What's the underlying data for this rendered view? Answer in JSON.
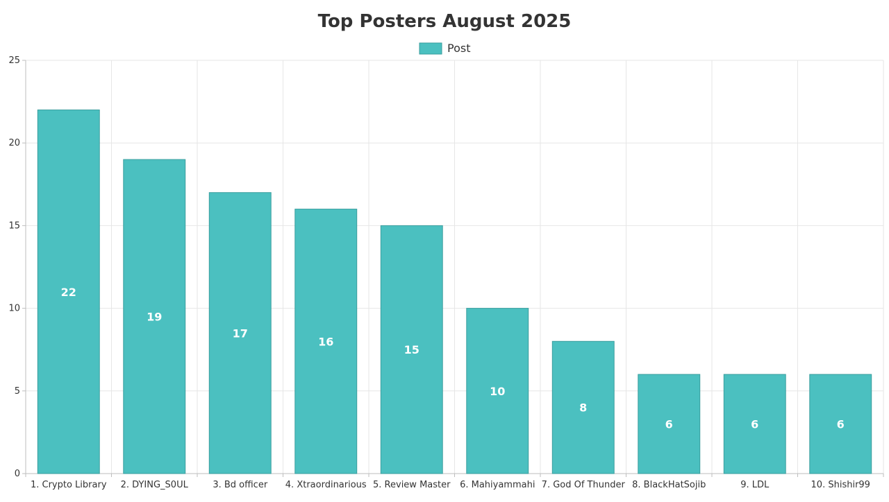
{
  "chart_data": {
    "type": "bar",
    "title": "Top Posters August 2025",
    "legend": {
      "label": "Post",
      "position": "top-center"
    },
    "categories": [
      "1. Crypto Library",
      "2. DYING_S0UL",
      "3. Bd officer",
      "4. Xtraordinarious",
      "5. Review Master",
      "6. Mahiyammahi",
      "7. God Of Thunder",
      "8. BlackHatSojib",
      "9. LDL",
      "10. Shishir99"
    ],
    "series": [
      {
        "name": "Post",
        "values": [
          22,
          19,
          17,
          16,
          15,
          10,
          8,
          6,
          6,
          6
        ]
      }
    ],
    "ylim": [
      0,
      25
    ],
    "yticks": [
      0,
      5,
      10,
      15,
      20,
      25
    ],
    "grid": true,
    "colors": {
      "bar_fill": "#4bc0c0",
      "bar_stroke": "#3a9e9e"
    }
  }
}
